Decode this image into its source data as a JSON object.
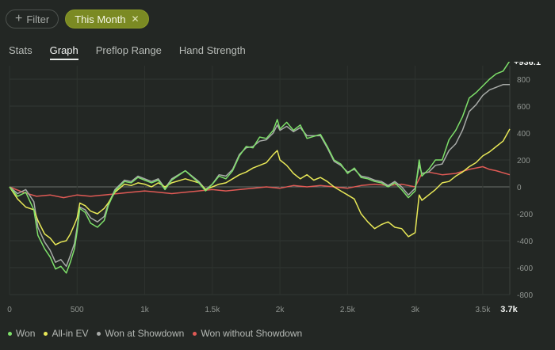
{
  "filter": {
    "label": "Filter",
    "icon": "plus-icon"
  },
  "chip": {
    "label": "This Month",
    "icon": "close-icon",
    "color": "#7b8a23"
  },
  "tabs": [
    {
      "label": "Stats",
      "active": false
    },
    {
      "label": "Graph",
      "active": true
    },
    {
      "label": "Preflop Range",
      "active": false
    },
    {
      "label": "Hand Strength",
      "active": false
    }
  ],
  "chart_data": {
    "type": "line",
    "xlim": [
      0,
      3700
    ],
    "ylim": [
      -800,
      900
    ],
    "x_ticks": [
      "0",
      "500",
      "1k",
      "1.5k",
      "2k",
      "2.5k",
      "3k",
      "3.5k"
    ],
    "x_ticks_values": [
      0,
      500,
      1000,
      1500,
      2000,
      2500,
      3000,
      3500
    ],
    "x_end_label": "3.7k",
    "y_ticks": [
      800,
      600,
      400,
      200,
      0,
      -200,
      -400,
      -600,
      -800
    ],
    "end_value_label": "+936.1",
    "grid": true,
    "legend_position": "bottom",
    "series": [
      {
        "name": "Won",
        "color": "#7ee06a",
        "points": [
          [
            0,
            0
          ],
          [
            60,
            -70
          ],
          [
            120,
            -40
          ],
          [
            180,
            -170
          ],
          [
            210,
            -360
          ],
          [
            260,
            -460
          ],
          [
            300,
            -520
          ],
          [
            340,
            -610
          ],
          [
            380,
            -590
          ],
          [
            420,
            -640
          ],
          [
            450,
            -560
          ],
          [
            480,
            -460
          ],
          [
            500,
            -330
          ],
          [
            520,
            -160
          ],
          [
            560,
            -190
          ],
          [
            600,
            -270
          ],
          [
            650,
            -300
          ],
          [
            700,
            -250
          ],
          [
            730,
            -140
          ],
          [
            780,
            -30
          ],
          [
            850,
            40
          ],
          [
            900,
            30
          ],
          [
            950,
            70
          ],
          [
            1000,
            50
          ],
          [
            1050,
            30
          ],
          [
            1100,
            50
          ],
          [
            1150,
            -20
          ],
          [
            1200,
            50
          ],
          [
            1300,
            120
          ],
          [
            1400,
            30
          ],
          [
            1450,
            -30
          ],
          [
            1500,
            20
          ],
          [
            1550,
            80
          ],
          [
            1600,
            60
          ],
          [
            1650,
            120
          ],
          [
            1700,
            230
          ],
          [
            1750,
            300
          ],
          [
            1800,
            290
          ],
          [
            1850,
            370
          ],
          [
            1900,
            360
          ],
          [
            1950,
            420
          ],
          [
            1980,
            500
          ],
          [
            2000,
            430
          ],
          [
            2050,
            480
          ],
          [
            2100,
            420
          ],
          [
            2150,
            460
          ],
          [
            2200,
            360
          ],
          [
            2300,
            390
          ],
          [
            2350,
            300
          ],
          [
            2400,
            200
          ],
          [
            2450,
            170
          ],
          [
            2500,
            100
          ],
          [
            2550,
            140
          ],
          [
            2600,
            70
          ],
          [
            2650,
            60
          ],
          [
            2700,
            40
          ],
          [
            2750,
            30
          ],
          [
            2800,
            0
          ],
          [
            2850,
            30
          ],
          [
            2900,
            -20
          ],
          [
            2950,
            -80
          ],
          [
            3000,
            -30
          ],
          [
            3030,
            200
          ],
          [
            3050,
            80
          ],
          [
            3100,
            130
          ],
          [
            3150,
            200
          ],
          [
            3200,
            200
          ],
          [
            3250,
            350
          ],
          [
            3300,
            420
          ],
          [
            3350,
            520
          ],
          [
            3400,
            660
          ],
          [
            3450,
            700
          ],
          [
            3500,
            750
          ],
          [
            3550,
            800
          ],
          [
            3600,
            840
          ],
          [
            3650,
            860
          ],
          [
            3700,
            936.1
          ]
        ]
      },
      {
        "name": "All-in EV",
        "color": "#e8e857",
        "points": [
          [
            0,
            0
          ],
          [
            60,
            -90
          ],
          [
            120,
            -150
          ],
          [
            180,
            -170
          ],
          [
            210,
            -250
          ],
          [
            260,
            -350
          ],
          [
            300,
            -380
          ],
          [
            340,
            -430
          ],
          [
            380,
            -410
          ],
          [
            420,
            -400
          ],
          [
            450,
            -350
          ],
          [
            480,
            -280
          ],
          [
            500,
            -230
          ],
          [
            520,
            -120
          ],
          [
            560,
            -140
          ],
          [
            600,
            -180
          ],
          [
            650,
            -200
          ],
          [
            700,
            -160
          ],
          [
            730,
            -120
          ],
          [
            780,
            -40
          ],
          [
            850,
            20
          ],
          [
            900,
            10
          ],
          [
            950,
            30
          ],
          [
            1000,
            20
          ],
          [
            1050,
            0
          ],
          [
            1100,
            30
          ],
          [
            1150,
            0
          ],
          [
            1200,
            30
          ],
          [
            1300,
            60
          ],
          [
            1400,
            30
          ],
          [
            1450,
            -20
          ],
          [
            1500,
            0
          ],
          [
            1550,
            20
          ],
          [
            1600,
            30
          ],
          [
            1650,
            60
          ],
          [
            1700,
            90
          ],
          [
            1750,
            110
          ],
          [
            1800,
            140
          ],
          [
            1850,
            160
          ],
          [
            1900,
            180
          ],
          [
            1950,
            240
          ],
          [
            1980,
            270
          ],
          [
            2000,
            200
          ],
          [
            2050,
            160
          ],
          [
            2100,
            100
          ],
          [
            2150,
            60
          ],
          [
            2200,
            90
          ],
          [
            2250,
            50
          ],
          [
            2300,
            70
          ],
          [
            2350,
            40
          ],
          [
            2400,
            0
          ],
          [
            2450,
            -30
          ],
          [
            2500,
            -60
          ],
          [
            2550,
            -90
          ],
          [
            2600,
            -200
          ],
          [
            2650,
            -260
          ],
          [
            2700,
            -310
          ],
          [
            2750,
            -280
          ],
          [
            2800,
            -260
          ],
          [
            2850,
            -300
          ],
          [
            2900,
            -310
          ],
          [
            2950,
            -370
          ],
          [
            3000,
            -340
          ],
          [
            3030,
            -60
          ],
          [
            3050,
            -100
          ],
          [
            3100,
            -60
          ],
          [
            3150,
            -20
          ],
          [
            3200,
            30
          ],
          [
            3250,
            40
          ],
          [
            3300,
            80
          ],
          [
            3350,
            110
          ],
          [
            3400,
            150
          ],
          [
            3450,
            180
          ],
          [
            3500,
            230
          ],
          [
            3550,
            260
          ],
          [
            3600,
            300
          ],
          [
            3650,
            340
          ],
          [
            3700,
            430
          ]
        ]
      },
      {
        "name": "Won at Showdown",
        "color": "#a8aba8",
        "points": [
          [
            0,
            0
          ],
          [
            60,
            -50
          ],
          [
            120,
            -20
          ],
          [
            180,
            -110
          ],
          [
            210,
            -300
          ],
          [
            260,
            -410
          ],
          [
            300,
            -470
          ],
          [
            340,
            -560
          ],
          [
            380,
            -540
          ],
          [
            420,
            -590
          ],
          [
            450,
            -510
          ],
          [
            480,
            -420
          ],
          [
            500,
            -300
          ],
          [
            520,
            -150
          ],
          [
            560,
            -170
          ],
          [
            600,
            -230
          ],
          [
            650,
            -260
          ],
          [
            700,
            -220
          ],
          [
            730,
            -130
          ],
          [
            780,
            -20
          ],
          [
            850,
            50
          ],
          [
            900,
            40
          ],
          [
            950,
            80
          ],
          [
            1000,
            60
          ],
          [
            1050,
            40
          ],
          [
            1100,
            60
          ],
          [
            1150,
            -10
          ],
          [
            1200,
            60
          ],
          [
            1300,
            120
          ],
          [
            1400,
            40
          ],
          [
            1450,
            -20
          ],
          [
            1500,
            20
          ],
          [
            1550,
            90
          ],
          [
            1600,
            80
          ],
          [
            1650,
            130
          ],
          [
            1700,
            240
          ],
          [
            1750,
            290
          ],
          [
            1800,
            300
          ],
          [
            1850,
            340
          ],
          [
            1900,
            350
          ],
          [
            1950,
            400
          ],
          [
            1980,
            460
          ],
          [
            2000,
            420
          ],
          [
            2050,
            450
          ],
          [
            2100,
            410
          ],
          [
            2150,
            440
          ],
          [
            2200,
            380
          ],
          [
            2300,
            380
          ],
          [
            2350,
            290
          ],
          [
            2400,
            190
          ],
          [
            2450,
            160
          ],
          [
            2500,
            110
          ],
          [
            2550,
            130
          ],
          [
            2600,
            80
          ],
          [
            2650,
            70
          ],
          [
            2700,
            50
          ],
          [
            2750,
            40
          ],
          [
            2800,
            10
          ],
          [
            2850,
            40
          ],
          [
            2900,
            0
          ],
          [
            2950,
            -60
          ],
          [
            3000,
            -10
          ],
          [
            3030,
            160
          ],
          [
            3050,
            100
          ],
          [
            3100,
            110
          ],
          [
            3150,
            160
          ],
          [
            3200,
            170
          ],
          [
            3250,
            270
          ],
          [
            3300,
            320
          ],
          [
            3350,
            420
          ],
          [
            3400,
            560
          ],
          [
            3450,
            610
          ],
          [
            3500,
            680
          ],
          [
            3550,
            720
          ],
          [
            3600,
            740
          ],
          [
            3650,
            760
          ],
          [
            3700,
            760
          ]
        ]
      },
      {
        "name": "Won without Showdown",
        "color": "#e05a55",
        "points": [
          [
            0,
            0
          ],
          [
            100,
            -40
          ],
          [
            200,
            -70
          ],
          [
            300,
            -60
          ],
          [
            400,
            -80
          ],
          [
            500,
            -60
          ],
          [
            600,
            -70
          ],
          [
            700,
            -60
          ],
          [
            800,
            -50
          ],
          [
            900,
            -40
          ],
          [
            1000,
            -30
          ],
          [
            1100,
            -40
          ],
          [
            1200,
            -50
          ],
          [
            1300,
            -40
          ],
          [
            1400,
            -30
          ],
          [
            1500,
            -20
          ],
          [
            1600,
            -30
          ],
          [
            1700,
            -20
          ],
          [
            1800,
            -10
          ],
          [
            1900,
            0
          ],
          [
            2000,
            -10
          ],
          [
            2100,
            10
          ],
          [
            2200,
            0
          ],
          [
            2300,
            10
          ],
          [
            2400,
            0
          ],
          [
            2500,
            -10
          ],
          [
            2600,
            10
          ],
          [
            2700,
            20
          ],
          [
            2800,
            10
          ],
          [
            2900,
            20
          ],
          [
            3000,
            0
          ],
          [
            3050,
            100
          ],
          [
            3100,
            110
          ],
          [
            3200,
            90
          ],
          [
            3300,
            100
          ],
          [
            3400,
            130
          ],
          [
            3500,
            150
          ],
          [
            3550,
            130
          ],
          [
            3600,
            120
          ],
          [
            3700,
            90
          ]
        ]
      }
    ]
  }
}
